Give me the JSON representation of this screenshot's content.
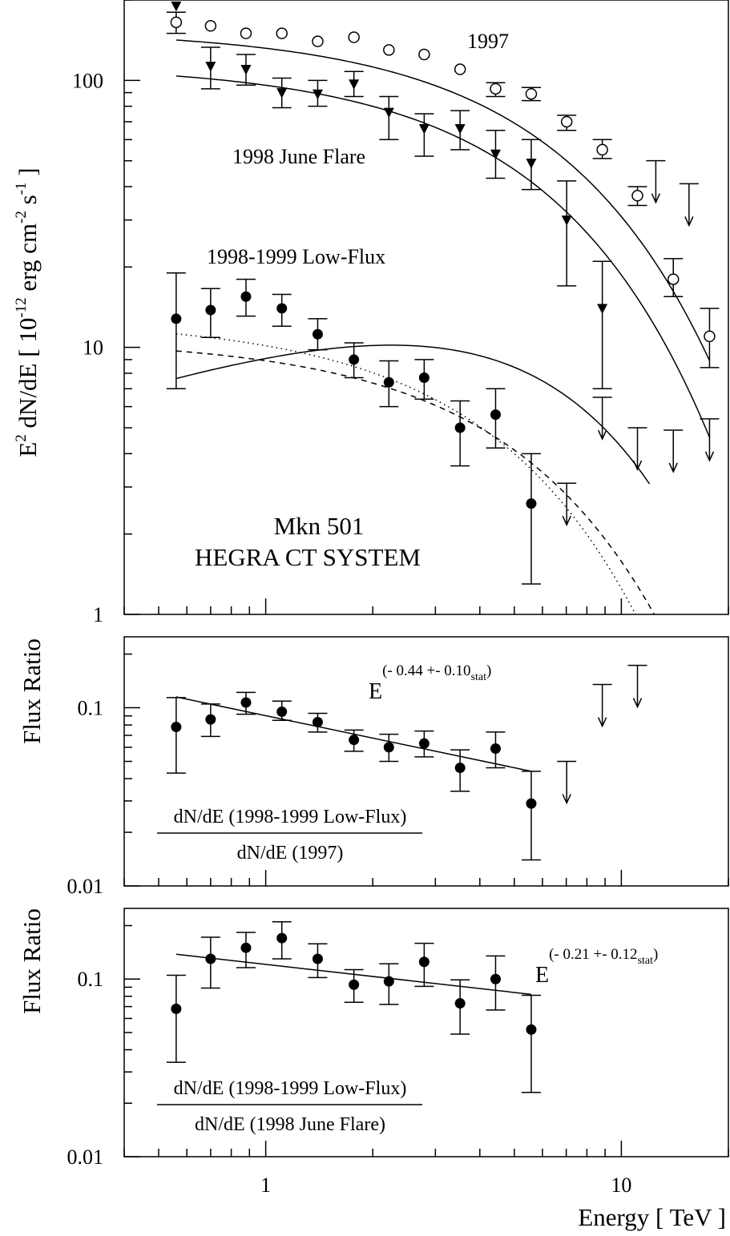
{
  "chart_data": [
    {
      "type": "scatter",
      "xscale": "log",
      "yscale": "log",
      "xlim": [
        0.4,
        20
      ],
      "ylim": [
        1,
        200
      ],
      "ylabel": "E² dN/dE [ 10⁻¹² erg cm⁻² s⁻¹ ]",
      "ylabel_parts": {
        "a": "E",
        "b": "2",
        "c": " dN/dE [ 10",
        "d": "-12",
        "e": " erg cm",
        "f": "-2",
        "g": " s",
        "h": "-1",
        "i": " ]"
      },
      "yticks": [
        {
          "v": 1,
          "label": "1"
        },
        {
          "v": 10,
          "label": "10"
        },
        {
          "v": 100,
          "label": "100"
        }
      ],
      "annotations": {
        "label_1997": "1997",
        "label_flare": "1998 June Flare",
        "label_low": "1998-1999 Low-Flux",
        "source_1": "Mkn 501",
        "source_2": "HEGRA CT SYSTEM"
      },
      "series": [
        {
          "name": "1997",
          "marker": "open-circle",
          "x": [
            0.56,
            0.7,
            0.88,
            1.11,
            1.4,
            1.77,
            2.22,
            2.79,
            3.52,
            4.43,
            5.58,
            7.02,
            8.84,
            11.1,
            14.0,
            17.7
          ],
          "y": [
            165,
            160,
            150,
            150,
            140,
            145,
            130,
            125,
            110,
            93,
            89,
            70,
            55,
            37,
            18,
            11
          ],
          "yerr_lo": [
            150,
            null,
            null,
            null,
            null,
            null,
            null,
            null,
            null,
            87,
            84,
            65,
            51,
            34,
            15.5,
            8.4
          ],
          "yerr_hi": [
            180,
            null,
            null,
            null,
            null,
            null,
            null,
            null,
            null,
            98,
            94,
            74,
            60,
            40,
            21.5,
            14
          ],
          "upper_limits": [
            {
              "x": 12.5,
              "y": 50
            },
            {
              "x": 15.5,
              "y": 41
            }
          ]
        },
        {
          "name": "1998 June Flare",
          "marker": "filled-triangle",
          "x": [
            0.56,
            0.7,
            0.88,
            1.11,
            1.4,
            1.77,
            2.22,
            2.79,
            3.52,
            4.43,
            5.58,
            7.02,
            8.84
          ],
          "y": [
            190,
            113,
            110,
            90,
            89,
            97,
            76,
            66,
            66,
            53,
            49,
            30,
            14
          ],
          "yerr_lo": [
            null,
            93,
            96,
            79,
            80,
            87,
            60,
            52,
            55,
            43,
            39,
            17,
            7
          ],
          "yerr_hi": [
            null,
            133,
            125,
            102,
            100,
            108,
            87,
            75,
            77,
            65,
            60,
            42,
            21
          ],
          "upper_limits": [
            {
              "x": 8.84,
              "y": 6.5
            },
            {
              "x": 11.1,
              "y": 5
            },
            {
              "x": 14.0,
              "y": 4.9
            },
            {
              "x": 17.7,
              "y": 5.4
            }
          ]
        },
        {
          "name": "1998-1999 Low-Flux",
          "marker": "filled-circle",
          "x": [
            0.56,
            0.7,
            0.88,
            1.11,
            1.4,
            1.77,
            2.22,
            2.79,
            3.52,
            4.43,
            5.58
          ],
          "y": [
            12.8,
            13.8,
            15.5,
            14.0,
            11.2,
            9.0,
            7.4,
            7.7,
            5.0,
            5.6,
            2.6
          ],
          "yerr_lo": [
            7.0,
            10.9,
            13.1,
            12.0,
            9.8,
            7.7,
            6.0,
            6.4,
            3.6,
            4.2,
            1.3
          ],
          "yerr_hi": [
            19.0,
            16.6,
            18.0,
            15.8,
            12.8,
            10.4,
            8.9,
            9.0,
            6.3,
            7.0,
            4.0
          ],
          "upper_limits": [
            {
              "x": 7.02,
              "y": 3.1
            }
          ]
        }
      ],
      "fits": [
        {
          "style": "solid",
          "A": 155,
          "g": 0.0,
          "Ec": 6.2,
          "range": [
            0.56,
            17.7
          ]
        },
        {
          "style": "solid",
          "A": 115,
          "g": 0.0,
          "Ec": 5.5,
          "range": [
            0.56,
            17.7
          ]
        },
        {
          "style": "solid",
          "A": 11.1,
          "g": -0.45,
          "Ec": 5.0,
          "range": [
            0.56,
            12
          ]
        },
        {
          "style": "dotted",
          "A": 12.8,
          "g": 0.0,
          "Ec": 4.3,
          "range": [
            0.56,
            20
          ]
        },
        {
          "style": "dashed",
          "A": 10.8,
          "g": 0.0,
          "Ec": 5.2,
          "range": [
            0.56,
            20
          ]
        }
      ]
    },
    {
      "type": "scatter",
      "xscale": "log",
      "yscale": "log",
      "xlim": [
        0.4,
        20
      ],
      "ylim": [
        0.01,
        0.25
      ],
      "ylabel": "Flux Ratio",
      "yticks": [
        {
          "v": 0.01,
          "label": "0.01"
        },
        {
          "v": 0.1,
          "label": "0.1"
        }
      ],
      "fit_label": {
        "base": "E",
        "exp_a": "(- 0.44 +- 0.10",
        "exp_sub": "stat",
        "exp_b": ")"
      },
      "ratio_label": {
        "numerator": "dN/dE (1998-1999 Low-Flux)",
        "denominator": "dN/dE (1997)"
      },
      "series": [
        {
          "name": "",
          "marker": "filled-circle",
          "x": [
            0.56,
            0.7,
            0.88,
            1.11,
            1.4,
            1.77,
            2.22,
            2.79,
            3.52,
            4.43,
            5.58
          ],
          "y": [
            0.078,
            0.086,
            0.107,
            0.095,
            0.083,
            0.066,
            0.06,
            0.063,
            0.046,
            0.059,
            0.029
          ],
          "yerr_lo": [
            0.043,
            0.069,
            0.092,
            0.085,
            0.073,
            0.057,
            0.05,
            0.053,
            0.034,
            0.046,
            0.014
          ],
          "yerr_hi": [
            0.114,
            0.105,
            0.122,
            0.109,
            0.093,
            0.075,
            0.071,
            0.074,
            0.058,
            0.073,
            0.044
          ],
          "upper_limits": [
            {
              "x": 7.02,
              "y": 0.05
            },
            {
              "x": 8.84,
              "y": 0.135
            },
            {
              "x": 11.1,
              "y": 0.173
            }
          ]
        }
      ],
      "fit": {
        "x0": 0.56,
        "x1": 5.58,
        "y0": 0.115,
        "y1": 0.044
      }
    },
    {
      "type": "scatter",
      "xscale": "log",
      "yscale": "log",
      "xlim": [
        0.4,
        20
      ],
      "ylim": [
        0.01,
        0.25
      ],
      "ylabel": "Flux Ratio",
      "xlabel": "Energy [ TeV ]",
      "yticks": [
        {
          "v": 0.01,
          "label": "0.01"
        },
        {
          "v": 0.1,
          "label": "0.1"
        }
      ],
      "xticks": [
        {
          "v": 1,
          "label": "1"
        },
        {
          "v": 10,
          "label": "10"
        }
      ],
      "fit_label": {
        "base": "E",
        "exp_a": "(- 0.21 +- 0.12",
        "exp_sub": "stat",
        "exp_b": ")"
      },
      "ratio_label": {
        "numerator": "dN/dE (1998-1999 Low-Flux)",
        "denominator": "dN/dE (1998 June Flare)"
      },
      "series": [
        {
          "name": "",
          "marker": "filled-circle",
          "x": [
            0.56,
            0.7,
            0.88,
            1.11,
            1.4,
            1.77,
            2.22,
            2.79,
            3.52,
            4.43,
            5.58
          ],
          "y": [
            0.068,
            0.13,
            0.15,
            0.17,
            0.13,
            0.093,
            0.097,
            0.125,
            0.073,
            0.1,
            0.052
          ],
          "yerr_lo": [
            0.034,
            0.089,
            0.116,
            0.13,
            0.102,
            0.074,
            0.072,
            0.091,
            0.049,
            0.067,
            0.023
          ],
          "yerr_hi": [
            0.105,
            0.172,
            0.183,
            0.21,
            0.158,
            0.113,
            0.122,
            0.159,
            0.099,
            0.135,
            0.081
          ]
        }
      ],
      "fit": {
        "x0": 0.56,
        "x1": 5.58,
        "y0": 0.138,
        "y1": 0.082
      }
    }
  ]
}
